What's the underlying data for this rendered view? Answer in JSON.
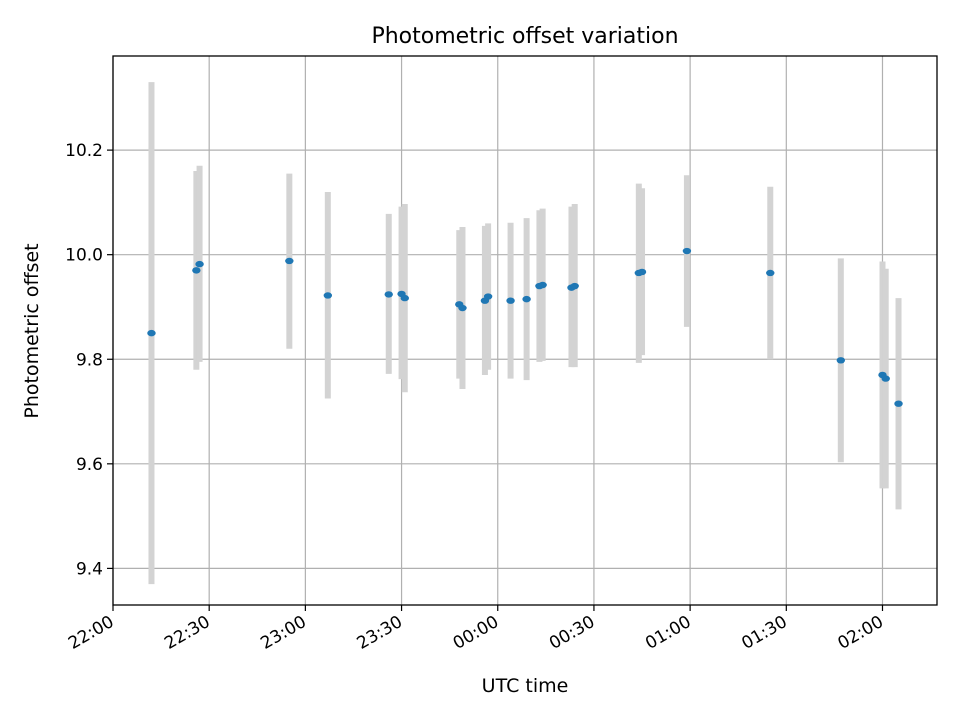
{
  "chart_data": {
    "type": "scatter",
    "title": "Photometric offset variation",
    "xlabel": "UTC time",
    "ylabel": "Photometric offset",
    "x_axis": "time",
    "x_ticks": [
      "22:00",
      "22:30",
      "23:00",
      "23:30",
      "00:00",
      "00:30",
      "01:00",
      "01:30",
      "02:00"
    ],
    "xlim": [
      "22:00",
      "02:17"
    ],
    "y_ticks": [
      "9.4",
      "9.6",
      "9.8",
      "10.0",
      "10.2"
    ],
    "ylim": [
      9.33,
      10.38
    ],
    "grid": true,
    "colors": {
      "point": "#1f77b4",
      "error_bar": "#d3d3d3",
      "grid": "#b0b0b0"
    },
    "points": [
      {
        "x": "22:12",
        "y": 9.85,
        "err_low": 9.37,
        "err_high": 10.33
      },
      {
        "x": "22:26",
        "y": 9.97,
        "err_low": 9.78,
        "err_high": 10.16
      },
      {
        "x": "22:27",
        "y": 9.982,
        "err_low": 9.795,
        "err_high": 10.17
      },
      {
        "x": "22:55",
        "y": 9.988,
        "err_low": 9.82,
        "err_high": 10.155
      },
      {
        "x": "23:07",
        "y": 9.922,
        "err_low": 9.725,
        "err_high": 10.12
      },
      {
        "x": "23:26",
        "y": 9.924,
        "err_low": 9.772,
        "err_high": 10.078
      },
      {
        "x": "23:30",
        "y": 9.925,
        "err_low": 9.762,
        "err_high": 10.092
      },
      {
        "x": "23:31",
        "y": 9.917,
        "err_low": 9.737,
        "err_high": 10.097
      },
      {
        "x": "23:48",
        "y": 9.905,
        "err_low": 9.763,
        "err_high": 10.047
      },
      {
        "x": "23:49",
        "y": 9.898,
        "err_low": 9.743,
        "err_high": 10.053
      },
      {
        "x": "23:56",
        "y": 9.912,
        "err_low": 9.77,
        "err_high": 10.055
      },
      {
        "x": "23:57",
        "y": 9.92,
        "err_low": 9.78,
        "err_high": 10.06
      },
      {
        "x": "00:04",
        "y": 9.912,
        "err_low": 9.763,
        "err_high": 10.061
      },
      {
        "x": "00:09",
        "y": 9.915,
        "err_low": 9.76,
        "err_high": 10.07
      },
      {
        "x": "00:13",
        "y": 9.94,
        "err_low": 9.795,
        "err_high": 10.085
      },
      {
        "x": "00:14",
        "y": 9.942,
        "err_low": 9.797,
        "err_high": 10.088
      },
      {
        "x": "00:23",
        "y": 9.937,
        "err_low": 9.785,
        "err_high": 10.092
      },
      {
        "x": "00:24",
        "y": 9.94,
        "err_low": 9.785,
        "err_high": 10.097
      },
      {
        "x": "00:44",
        "y": 9.965,
        "err_low": 9.793,
        "err_high": 10.136
      },
      {
        "x": "00:45",
        "y": 9.967,
        "err_low": 9.808,
        "err_high": 10.127
      },
      {
        "x": "00:59",
        "y": 10.007,
        "err_low": 9.862,
        "err_high": 10.152
      },
      {
        "x": "01:25",
        "y": 9.965,
        "err_low": 9.8,
        "err_high": 10.13
      },
      {
        "x": "01:47",
        "y": 9.798,
        "err_low": 9.603,
        "err_high": 9.993
      },
      {
        "x": "02:00",
        "y": 9.77,
        "err_low": 9.553,
        "err_high": 9.987
      },
      {
        "x": "02:01",
        "y": 9.763,
        "err_low": 9.553,
        "err_high": 9.973
      },
      {
        "x": "02:05",
        "y": 9.715,
        "err_low": 9.513,
        "err_high": 9.917
      }
    ]
  }
}
